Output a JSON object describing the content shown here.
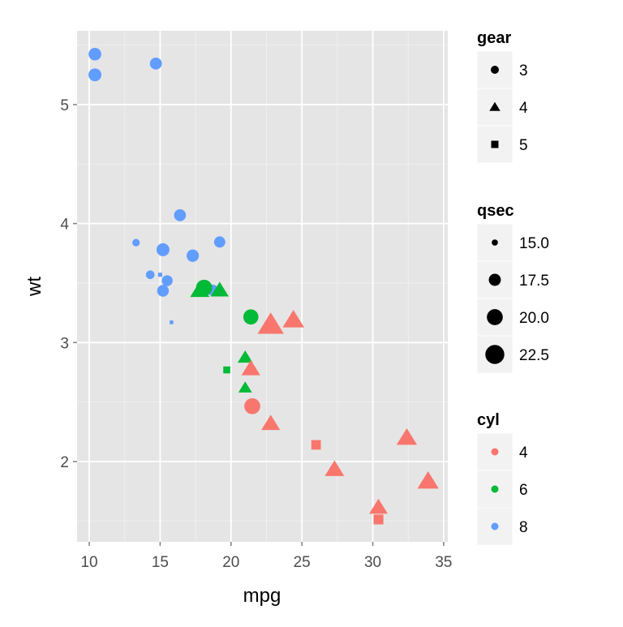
{
  "chart_data": {
    "type": "scatter",
    "xlabel": "mpg",
    "ylabel": "wt",
    "xlim": [
      9.14,
      35.29
    ],
    "ylim": [
      1.325,
      5.62
    ],
    "x_ticks": [
      10,
      15,
      20,
      25,
      30,
      35
    ],
    "y_ticks": [
      2,
      3,
      4,
      5
    ],
    "grid": true,
    "legend_placement": "right",
    "colors": {
      "background": "#E5E5E5",
      "grid_major": "#FFFFFF",
      "grid_minor": "#F2F2F2",
      "legend_key": "#F2F2F2"
    },
    "legends": {
      "gear": {
        "title": "gear",
        "entries": [
          {
            "label": "3",
            "shape": "circle"
          },
          {
            "label": "4",
            "shape": "triangle"
          },
          {
            "label": "5",
            "shape": "square"
          }
        ]
      },
      "qsec": {
        "title": "qsec",
        "entries": [
          {
            "label": "15.0",
            "value": 15.0
          },
          {
            "label": "17.5",
            "value": 17.5
          },
          {
            "label": "20.0",
            "value": 20.0
          },
          {
            "label": "22.5",
            "value": 22.5
          }
        ]
      },
      "cyl": {
        "title": "cyl",
        "entries": [
          {
            "label": "4",
            "color": "#F8766D"
          },
          {
            "label": "6",
            "color": "#00BA38"
          },
          {
            "label": "8",
            "color": "#619CFF"
          }
        ]
      }
    },
    "points": [
      {
        "mpg": 21.0,
        "wt": 2.62,
        "qsec": 16.46,
        "gear": 4,
        "cyl": 6
      },
      {
        "mpg": 21.0,
        "wt": 2.875,
        "qsec": 17.02,
        "gear": 4,
        "cyl": 6
      },
      {
        "mpg": 22.8,
        "wt": 2.32,
        "qsec": 18.61,
        "gear": 4,
        "cyl": 4
      },
      {
        "mpg": 21.4,
        "wt": 3.215,
        "qsec": 19.44,
        "gear": 3,
        "cyl": 6
      },
      {
        "mpg": 18.7,
        "wt": 3.44,
        "qsec": 17.02,
        "gear": 3,
        "cyl": 8
      },
      {
        "mpg": 18.1,
        "wt": 3.46,
        "qsec": 20.22,
        "gear": 3,
        "cyl": 6
      },
      {
        "mpg": 14.3,
        "wt": 3.57,
        "qsec": 15.84,
        "gear": 3,
        "cyl": 8
      },
      {
        "mpg": 24.4,
        "wt": 3.19,
        "qsec": 20.0,
        "gear": 4,
        "cyl": 4
      },
      {
        "mpg": 22.8,
        "wt": 3.15,
        "qsec": 22.9,
        "gear": 4,
        "cyl": 4
      },
      {
        "mpg": 19.2,
        "wt": 3.44,
        "qsec": 18.3,
        "gear": 4,
        "cyl": 6
      },
      {
        "mpg": 17.8,
        "wt": 3.44,
        "qsec": 18.9,
        "gear": 4,
        "cyl": 6
      },
      {
        "mpg": 16.4,
        "wt": 4.07,
        "qsec": 17.4,
        "gear": 3,
        "cyl": 8
      },
      {
        "mpg": 17.3,
        "wt": 3.73,
        "qsec": 17.6,
        "gear": 3,
        "cyl": 8
      },
      {
        "mpg": 15.2,
        "wt": 3.78,
        "qsec": 18.0,
        "gear": 3,
        "cyl": 8
      },
      {
        "mpg": 10.4,
        "wt": 5.25,
        "qsec": 17.98,
        "gear": 3,
        "cyl": 8
      },
      {
        "mpg": 10.4,
        "wt": 5.424,
        "qsec": 17.82,
        "gear": 3,
        "cyl": 8
      },
      {
        "mpg": 14.7,
        "wt": 5.345,
        "qsec": 17.42,
        "gear": 3,
        "cyl": 8
      },
      {
        "mpg": 32.4,
        "wt": 2.2,
        "qsec": 19.47,
        "gear": 4,
        "cyl": 4
      },
      {
        "mpg": 30.4,
        "wt": 1.615,
        "qsec": 18.52,
        "gear": 4,
        "cyl": 4
      },
      {
        "mpg": 33.9,
        "wt": 1.835,
        "qsec": 19.9,
        "gear": 4,
        "cyl": 4
      },
      {
        "mpg": 21.5,
        "wt": 2.465,
        "qsec": 20.01,
        "gear": 3,
        "cyl": 4
      },
      {
        "mpg": 15.5,
        "wt": 3.52,
        "qsec": 16.87,
        "gear": 3,
        "cyl": 8
      },
      {
        "mpg": 15.2,
        "wt": 3.435,
        "qsec": 17.3,
        "gear": 3,
        "cyl": 8
      },
      {
        "mpg": 13.3,
        "wt": 3.84,
        "qsec": 15.41,
        "gear": 3,
        "cyl": 8
      },
      {
        "mpg": 19.2,
        "wt": 3.845,
        "qsec": 17.05,
        "gear": 3,
        "cyl": 8
      },
      {
        "mpg": 27.3,
        "wt": 1.935,
        "qsec": 18.9,
        "gear": 4,
        "cyl": 4
      },
      {
        "mpg": 26.0,
        "wt": 2.14,
        "qsec": 16.7,
        "gear": 5,
        "cyl": 4
      },
      {
        "mpg": 30.4,
        "wt": 1.513,
        "qsec": 16.9,
        "gear": 5,
        "cyl": 4
      },
      {
        "mpg": 15.8,
        "wt": 3.17,
        "qsec": 14.5,
        "gear": 5,
        "cyl": 8
      },
      {
        "mpg": 19.7,
        "wt": 2.77,
        "qsec": 15.5,
        "gear": 5,
        "cyl": 6
      },
      {
        "mpg": 15.0,
        "wt": 3.57,
        "qsec": 14.6,
        "gear": 5,
        "cyl": 8
      },
      {
        "mpg": 21.4,
        "wt": 2.78,
        "qsec": 18.6,
        "gear": 4,
        "cyl": 4
      }
    ]
  }
}
